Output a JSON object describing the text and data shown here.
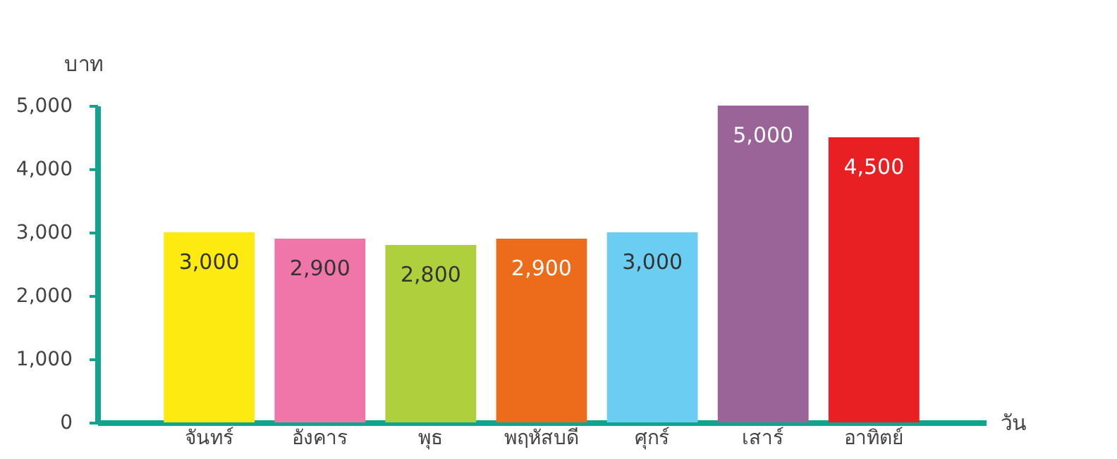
{
  "chart_data": {
    "type": "bar",
    "ylabel": "บาท",
    "xlabel": "วัน",
    "categories": [
      "จันทร์",
      "อังคาร",
      "พุธ",
      "พฤหัสบดี",
      "ศุกร์",
      "เสาร์",
      "อาทิตย์"
    ],
    "values": [
      3000,
      2900,
      2800,
      2900,
      3000,
      5000,
      4500
    ],
    "colors": [
      "#fcea10",
      "#f075a8",
      "#afcf3c",
      "#ec6c1c",
      "#6ccdf2",
      "#9a6499",
      "#e82024"
    ],
    "ylim": [
      0,
      5000
    ],
    "yticks": [
      0,
      {
        "value": 1000,
        "label": "1,000"
      },
      {
        "value": 2000,
        "label": "2,000"
      },
      {
        "value": 3000,
        "label": "3,000"
      },
      {
        "value": 4000,
        "label": "4,000"
      },
      {
        "value": 5000,
        "label": "5,000"
      }
    ],
    "value_labels": [
      "3,000",
      "2,900",
      "2,800",
      "2,900",
      "3,000",
      "5,000",
      "4,500"
    ],
    "grid": false
  }
}
